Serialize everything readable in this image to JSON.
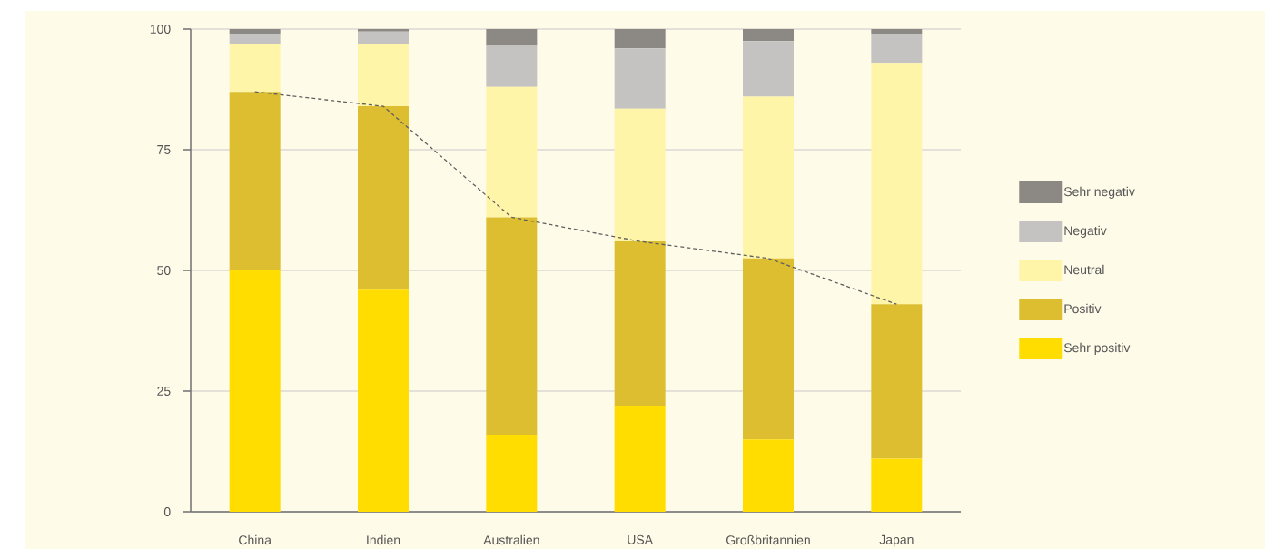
{
  "chart_data": {
    "type": "bar",
    "stacked": true,
    "categories": [
      "China",
      "Indien",
      "Australien",
      "USA",
      "Großbritannien",
      "Japan"
    ],
    "series": [
      {
        "name": "Sehr positiv",
        "color": "#ffdd00",
        "values": [
          50,
          46,
          16,
          22,
          15,
          11
        ]
      },
      {
        "name": "Positiv",
        "color": "#dcbe30",
        "values": [
          37,
          38,
          45,
          34,
          37.5,
          32
        ]
      },
      {
        "name": "Neutral",
        "color": "#fff5a8",
        "values": [
          10,
          13,
          27,
          27.5,
          33.5,
          50
        ]
      },
      {
        "name": "Negativ",
        "color": "#c4c3c1",
        "values": [
          2,
          2.5,
          8.5,
          12.5,
          11.5,
          6
        ]
      },
      {
        "name": "Sehr negativ",
        "color": "#8c8884",
        "values": [
          1,
          0.5,
          3.5,
          4,
          2.5,
          1
        ]
      },
      {
        "type": "line",
        "color": "#5f5f5f",
        "line_style": "dashed",
        "values": [
          87,
          84,
          61,
          56,
          52.5,
          43
        ]
      }
    ],
    "ylim": [
      0,
      100
    ],
    "yticks": [
      0,
      25,
      50,
      75,
      100
    ],
    "grid": "y",
    "legend": "right"
  }
}
